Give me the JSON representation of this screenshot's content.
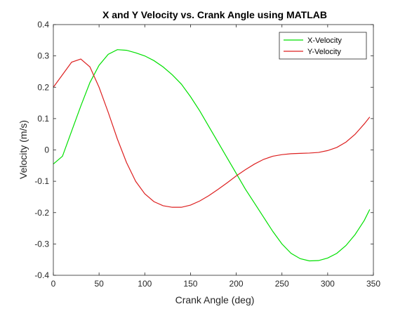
{
  "chart_data": {
    "type": "line",
    "title": "X and Y Velocity vs. Crank Angle using MATLAB",
    "xlabel": "Crank Angle (deg)",
    "ylabel": "Velocity (m/s)",
    "xlim": [
      0,
      350
    ],
    "ylim": [
      -0.4,
      0.4
    ],
    "xticks": [
      0,
      50,
      100,
      150,
      200,
      250,
      300,
      350
    ],
    "yticks": [
      -0.4,
      -0.3,
      -0.2,
      -0.1,
      0,
      0.1,
      0.2,
      0.3,
      0.4
    ],
    "xtick_labels": [
      "0",
      "50",
      "100",
      "150",
      "200",
      "250",
      "300",
      "350"
    ],
    "ytick_labels": [
      "-0.4",
      "-0.3",
      "-0.2",
      "-0.1",
      "0",
      "0.1",
      "0.2",
      "0.3",
      "0.4"
    ],
    "grid": false,
    "legend_position": "top-right",
    "series": [
      {
        "name": "X-Velocity",
        "color": "#00e000",
        "x": [
          0,
          10,
          20,
          30,
          40,
          50,
          60,
          70,
          80,
          90,
          100,
          110,
          120,
          130,
          140,
          150,
          160,
          170,
          180,
          190,
          200,
          210,
          220,
          230,
          240,
          250,
          260,
          270,
          280,
          290,
          300,
          310,
          320,
          330,
          340,
          346
        ],
        "y": [
          -0.045,
          -0.02,
          0.06,
          0.14,
          0.215,
          0.27,
          0.305,
          0.32,
          0.318,
          0.31,
          0.3,
          0.285,
          0.265,
          0.24,
          0.21,
          0.17,
          0.125,
          0.075,
          0.025,
          -0.025,
          -0.075,
          -0.125,
          -0.17,
          -0.215,
          -0.26,
          -0.3,
          -0.33,
          -0.347,
          -0.354,
          -0.353,
          -0.345,
          -0.33,
          -0.305,
          -0.27,
          -0.225,
          -0.19
        ]
      },
      {
        "name": "Y-Velocity",
        "color": "#dd2020",
        "x": [
          0,
          10,
          20,
          30,
          40,
          50,
          60,
          70,
          80,
          90,
          100,
          110,
          120,
          130,
          140,
          150,
          160,
          170,
          180,
          190,
          200,
          210,
          220,
          230,
          240,
          250,
          260,
          270,
          280,
          290,
          300,
          310,
          320,
          330,
          340,
          346
        ],
        "y": [
          0.2,
          0.24,
          0.28,
          0.29,
          0.265,
          0.2,
          0.12,
          0.035,
          -0.04,
          -0.1,
          -0.14,
          -0.165,
          -0.178,
          -0.183,
          -0.183,
          -0.176,
          -0.163,
          -0.146,
          -0.126,
          -0.105,
          -0.083,
          -0.063,
          -0.045,
          -0.03,
          -0.02,
          -0.015,
          -0.012,
          -0.011,
          -0.01,
          -0.008,
          -0.002,
          0.008,
          0.025,
          0.05,
          0.083,
          0.105
        ]
      }
    ]
  }
}
